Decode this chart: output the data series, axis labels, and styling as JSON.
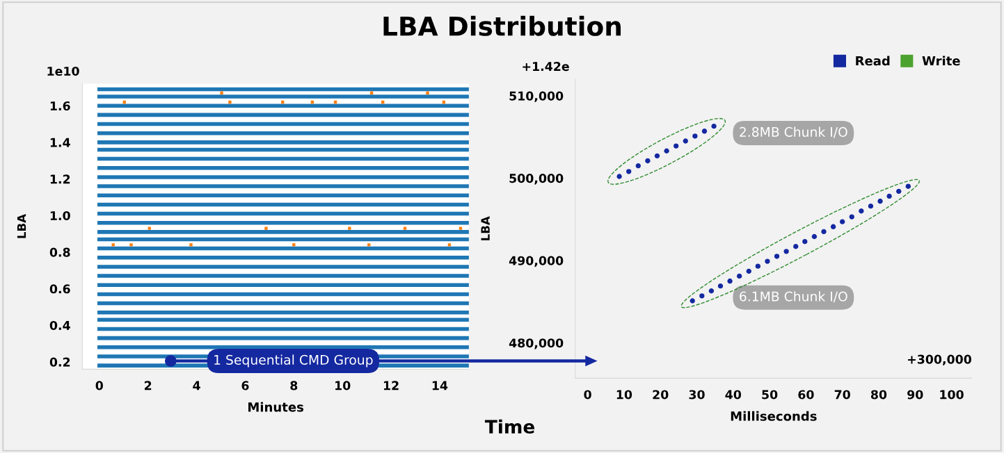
{
  "chart_data": [
    {
      "type": "line",
      "title": "LBA Distribution",
      "xlabel": "Minutes",
      "ylabel": "LBA",
      "xlim": [
        -0.7,
        15.2
      ],
      "xticks": [
        0,
        2,
        4,
        6,
        8,
        10,
        12,
        14
      ],
      "ylim": [
        0.16,
        1.72
      ],
      "yticks": [
        0.2,
        0.4,
        0.6,
        0.8,
        {
          "value": 1,
          "label": "1.0"
        },
        1.2,
        1.4,
        1.6
      ],
      "grid": false,
      "legend": false,
      "marker": "none",
      "line_style": "solid",
      "annotations": [
        "1e10",
        "1 Sequential CMD Group",
        "Time"
      ],
      "series": [
        {
          "color": "#1f77b4",
          "x": [
            0,
            15.2
          ],
          "values": [
            1.69,
            1.69
          ]
        },
        {
          "color": "#1f77b4",
          "x": [
            0,
            15.2
          ],
          "values": [
            1.65,
            1.65
          ]
        },
        {
          "color": "#1f77b4",
          "x": [
            0,
            15.2
          ],
          "values": [
            1.6,
            1.6
          ]
        },
        {
          "color": "#1f77b4",
          "x": [
            0,
            15.2
          ],
          "values": [
            1.55,
            1.55
          ]
        },
        {
          "color": "#1f77b4",
          "x": [
            0,
            15.2
          ],
          "values": [
            1.5,
            1.5
          ]
        },
        {
          "color": "#1f77b4",
          "x": [
            0,
            15.2
          ],
          "values": [
            1.45,
            1.45
          ]
        },
        {
          "color": "#1f77b4",
          "x": [
            0,
            15.2
          ],
          "values": [
            1.4,
            1.4
          ]
        },
        {
          "color": "#1f77b4",
          "x": [
            0,
            15.2
          ],
          "values": [
            1.36,
            1.36
          ]
        },
        {
          "color": "#1f77b4",
          "x": [
            0,
            15.2
          ],
          "values": [
            1.31,
            1.31
          ]
        },
        {
          "color": "#1f77b4",
          "x": [
            0,
            15.2
          ],
          "values": [
            1.26,
            1.26
          ]
        },
        {
          "color": "#1f77b4",
          "x": [
            0,
            15.2
          ],
          "values": [
            1.21,
            1.21
          ]
        },
        {
          "color": "#1f77b4",
          "x": [
            0,
            15.2
          ],
          "values": [
            1.16,
            1.16
          ]
        },
        {
          "color": "#1f77b4",
          "x": [
            0,
            15.2
          ],
          "values": [
            1.11,
            1.11
          ]
        },
        {
          "color": "#1f77b4",
          "x": [
            0,
            15.2
          ],
          "values": [
            1.06,
            1.06
          ]
        },
        {
          "color": "#1f77b4",
          "x": [
            0,
            15.2
          ],
          "values": [
            1.01,
            1.01
          ]
        },
        {
          "color": "#1f77b4",
          "x": [
            0,
            15.2
          ],
          "values": [
            0.96,
            0.96
          ]
        },
        {
          "color": "#1f77b4",
          "x": [
            0,
            15.2
          ],
          "values": [
            0.91,
            0.91
          ]
        },
        {
          "color": "#1f77b4",
          "x": [
            0,
            15.2
          ],
          "values": [
            0.87,
            0.87
          ]
        },
        {
          "color": "#1f77b4",
          "x": [
            0,
            15.2
          ],
          "values": [
            0.82,
            0.82
          ]
        },
        {
          "color": "#1f77b4",
          "x": [
            0,
            15.2
          ],
          "values": [
            0.77,
            0.77
          ]
        },
        {
          "color": "#1f77b4",
          "x": [
            0,
            15.2
          ],
          "values": [
            0.72,
            0.72
          ]
        },
        {
          "color": "#1f77b4",
          "x": [
            0,
            15.2
          ],
          "values": [
            0.67,
            0.67
          ]
        },
        {
          "color": "#1f77b4",
          "x": [
            0,
            15.2
          ],
          "values": [
            0.62,
            0.62
          ]
        },
        {
          "color": "#1f77b4",
          "x": [
            0,
            15.2
          ],
          "values": [
            0.57,
            0.57
          ]
        },
        {
          "color": "#1f77b4",
          "x": [
            0,
            15.2
          ],
          "values": [
            0.52,
            0.52
          ]
        },
        {
          "color": "#1f77b4",
          "x": [
            0,
            15.2
          ],
          "values": [
            0.47,
            0.47
          ]
        },
        {
          "color": "#1f77b4",
          "x": [
            0,
            15.2
          ],
          "values": [
            0.43,
            0.43
          ]
        },
        {
          "color": "#1f77b4",
          "x": [
            0,
            15.2
          ],
          "values": [
            0.38,
            0.38
          ]
        },
        {
          "color": "#1f77b4",
          "x": [
            0,
            15.2
          ],
          "values": [
            0.33,
            0.33
          ]
        },
        {
          "color": "#1f77b4",
          "x": [
            0,
            15.2
          ],
          "values": [
            0.28,
            0.28
          ]
        },
        {
          "color": "#1f77b4",
          "x": [
            0,
            15.2
          ],
          "values": [
            0.23,
            0.23
          ]
        },
        {
          "color": "#1f77b4",
          "x": [
            0,
            15.2
          ],
          "values": [
            0.18,
            0.18
          ]
        },
        {
          "type": "scatter",
          "marker": "square",
          "color": "#ff7f0e",
          "x": [
            1.03,
            5.37,
            7.54,
            8.76,
            9.71,
            11.66,
            14.17,
            5.03,
            11.2,
            13.5,
            2.06,
            6.86,
            10.29,
            12.57,
            14.86,
            0.57,
            1.31,
            3.77,
            8.0,
            11.09,
            14.4
          ],
          "values": [
            1.62,
            1.62,
            1.62,
            1.62,
            1.62,
            1.62,
            1.62,
            1.67,
            1.67,
            1.67,
            0.93,
            0.93,
            0.93,
            0.93,
            0.93,
            0.84,
            0.84,
            0.84,
            0.84,
            0.84,
            0.84
          ]
        }
      ]
    },
    {
      "type": "scatter",
      "xlabel": "Milliseconds",
      "ylabel": "LBA",
      "xlim": [
        -3.4,
        105.6
      ],
      "xticks": [
        0,
        10,
        20,
        30,
        40,
        50,
        60,
        70,
        80,
        90,
        100
      ],
      "ylim": [
        475700,
        512000
      ],
      "yticks": [
        {
          "value": 480000,
          "label": "480,000"
        },
        {
          "value": 490000,
          "label": "490,000"
        },
        {
          "value": 500000,
          "label": "500,000"
        },
        {
          "value": 510000,
          "label": "510,000"
        }
      ],
      "grid": false,
      "legend": "top right",
      "marker": "circle",
      "annotations": [
        "+1.42e",
        "+300,000",
        "2.8MB Chunk I/O",
        "6.1MB Chunk I/O"
      ],
      "series": [
        {
          "name": "Read",
          "color": "#1428a0",
          "x": [
            8.7,
            11.3,
            13.9,
            16.5,
            19.1,
            21.7,
            24.3,
            26.9,
            29.5,
            32.1,
            34.7,
            28.8,
            31.4,
            34.0,
            36.5,
            39.1,
            41.7,
            44.3,
            46.8,
            49.4,
            52.0,
            54.6,
            57.2,
            59.7,
            62.3,
            64.9,
            67.5,
            70.0,
            72.6,
            75.2,
            77.8,
            80.4,
            82.9,
            85.5,
            88.1
          ],
          "values": [
            500200,
            500800,
            501500,
            502100,
            502700,
            503300,
            503900,
            504500,
            505100,
            505700,
            506300,
            485100,
            485700,
            486300,
            486900,
            487500,
            488100,
            488700,
            489300,
            489900,
            490500,
            491100,
            491700,
            492300,
            492900,
            493500,
            494100,
            494700,
            495300,
            496000,
            496600,
            497200,
            497800,
            498400,
            499000
          ]
        },
        {
          "name": "Write",
          "color": "#4ca22f"
        }
      ]
    }
  ]
}
